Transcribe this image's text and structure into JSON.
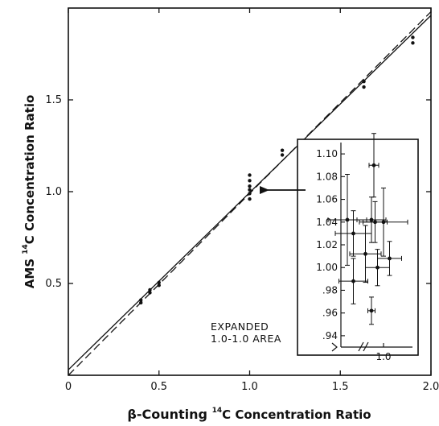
{
  "chart_data": [
    {
      "type": "scatter",
      "title": "",
      "xlabel_parts": {
        "pre": "β-Counting ",
        "sup": "14",
        "post": "C Concentration Ratio"
      },
      "ylabel_parts": {
        "pre": "AMS ",
        "sup": "14",
        "post": "C Concentration Ratio"
      },
      "xlim": [
        0,
        2.0
      ],
      "ylim": [
        0,
        2.0
      ],
      "xticks": [
        0,
        0.5,
        1.0,
        1.5,
        2.0
      ],
      "xtick_labels": [
        "0",
        "0.5",
        "1.0",
        "1.5",
        "2.0"
      ],
      "yticks": [
        0.5,
        1.0,
        1.5
      ],
      "ytick_labels": [
        "0.5",
        "1.0",
        "1.5"
      ],
      "grid": false,
      "series": [
        {
          "points": [
            {
              "x": 0.4,
              "y": 0.395
            },
            {
              "x": 0.4,
              "y": 0.41
            },
            {
              "x": 0.45,
              "y": 0.45
            },
            {
              "x": 0.45,
              "y": 0.465
            },
            {
              "x": 0.5,
              "y": 0.49
            },
            {
              "x": 0.5,
              "y": 0.505
            },
            {
              "x": 1.0,
              "y": 0.96
            },
            {
              "x": 1.0,
              "y": 0.99
            },
            {
              "x": 1.0,
              "y": 1.01
            },
            {
              "x": 1.0,
              "y": 1.03
            },
            {
              "x": 1.0,
              "y": 1.06
            },
            {
              "x": 1.0,
              "y": 1.09
            },
            {
              "x": 1.18,
              "y": 1.2
            },
            {
              "x": 1.18,
              "y": 1.225
            },
            {
              "x": 1.63,
              "y": 1.57
            },
            {
              "x": 1.63,
              "y": 1.6
            },
            {
              "x": 1.9,
              "y": 1.81
            },
            {
              "x": 1.9,
              "y": 1.84
            }
          ]
        }
      ],
      "lines": [
        {
          "style": "solid",
          "from": [
            0,
            0.03
          ],
          "to": [
            2.0,
            1.96
          ]
        },
        {
          "style": "dashed",
          "from": [
            0,
            0.0
          ],
          "to": [
            2.0,
            1.98
          ]
        }
      ]
    },
    {
      "type": "scatter",
      "title": "",
      "ylim": [
        0.93,
        1.11
      ],
      "yticks": [
        0.94,
        0.96,
        0.98,
        1.0,
        1.02,
        1.04,
        1.06,
        1.08,
        1.1
      ],
      "ytick_labels": [
        ".94",
        ".96",
        ".98",
        "1.00",
        "1.02",
        "1.04",
        "1.06",
        "1.08",
        "1.10"
      ],
      "xtick_labels": [
        "1.0"
      ],
      "annotation": "EXPANDED\n1.0-1.0 AREA",
      "points": [
        {
          "x": 0.97,
          "y": 1.042,
          "yerr": 0.04,
          "xerr": 0.016
        },
        {
          "x": 0.975,
          "y": 1.03,
          "yerr": 0.02,
          "xerr": 0.015
        },
        {
          "x": 0.975,
          "y": 0.988,
          "yerr": 0.02,
          "xerr": 0.012
        },
        {
          "x": 0.985,
          "y": 1.012,
          "yerr": 0.025,
          "xerr": 0.013
        },
        {
          "x": 0.99,
          "y": 1.042,
          "yerr": 0.02,
          "xerr": 0.012
        },
        {
          "x": 0.99,
          "y": 0.962,
          "yerr": 0.012,
          "xerr": 0.003
        },
        {
          "x": 0.992,
          "y": 1.09,
          "yerr": 0.028,
          "xerr": 0.004
        },
        {
          "x": 0.993,
          "y": 1.04,
          "yerr": 0.018,
          "xerr": 0.01
        },
        {
          "x": 0.995,
          "y": 1.0,
          "yerr": 0.016,
          "xerr": 0.01
        },
        {
          "x": 1.0,
          "y": 1.04,
          "yerr": 0.03,
          "xerr": 0.02
        },
        {
          "x": 1.005,
          "y": 1.008,
          "yerr": 0.015,
          "xerr": 0.01
        }
      ]
    }
  ]
}
